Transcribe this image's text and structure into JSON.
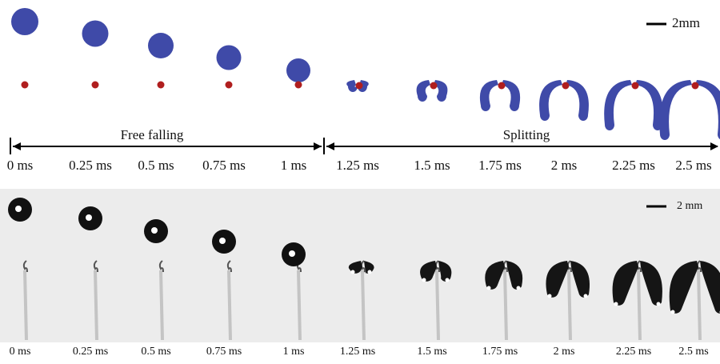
{
  "scale_bars": {
    "top": "2mm",
    "bottom": "2 mm"
  },
  "phases": {
    "free_falling": "Free falling",
    "splitting": "Splitting"
  },
  "top_times": [
    "0 ms",
    "0.25 ms",
    "0.5 ms",
    "0.75 ms",
    "1 ms",
    "1.25 ms",
    "1.5 ms",
    "1.75 ms",
    "2 ms",
    "2.25 ms",
    "2.5 ms"
  ],
  "bottom_times": [
    "0 ms",
    "0.25 ms",
    "0.5 ms",
    "0.75 ms",
    "1 ms",
    "1.25 ms",
    "1.5 ms",
    "1.75 ms",
    "2 ms",
    "2.25 ms",
    "2.5 ms"
  ]
}
